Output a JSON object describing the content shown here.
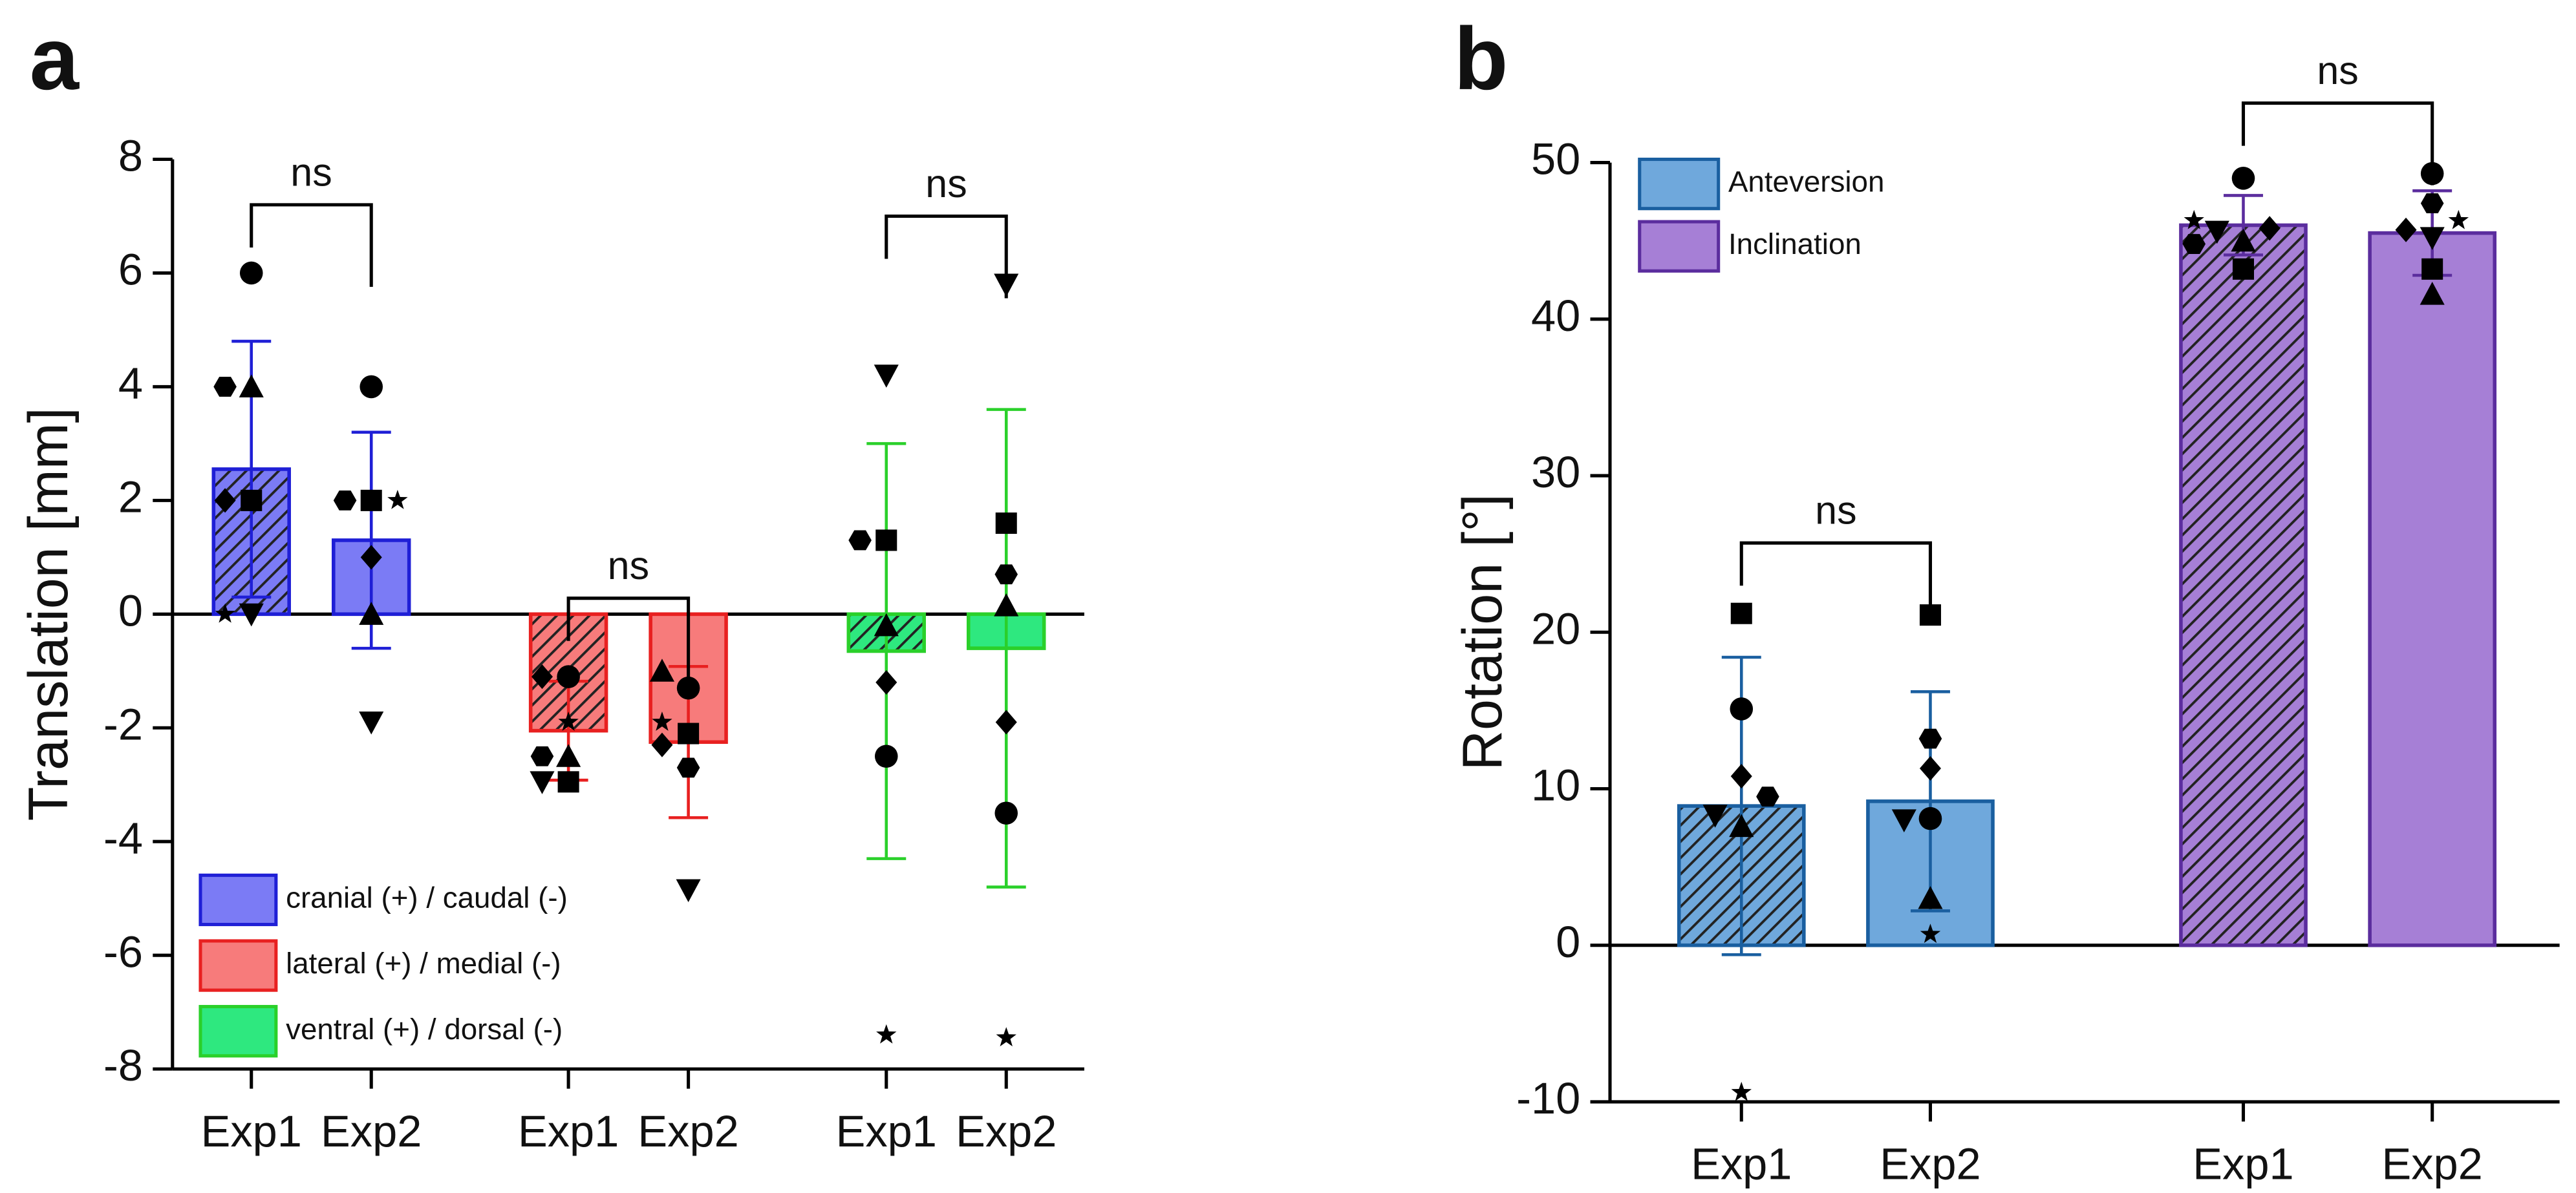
{
  "chart_data": [
    {
      "type": "bar",
      "panel_label": "a",
      "ylabel": "Translation [mm]",
      "ylim": [
        -8,
        8
      ],
      "yticks": [
        -8,
        -6,
        -4,
        -2,
        0,
        2,
        4,
        6,
        8
      ],
      "markers": [
        "circle",
        "square",
        "triangle",
        "down-triangle",
        "diamond",
        "hexagon",
        "star"
      ],
      "hatched": [
        true,
        false
      ],
      "legend": "lower left",
      "groups": [
        {
          "name": "cranial (+) / caudal (-)",
          "color": "#7b7bf5",
          "edge": "#1f1fd6",
          "categories": [
            "Exp1",
            "Exp2"
          ],
          "annotation": "ns",
          "values": [
            2.55,
            1.3
          ],
          "errors": [
            2.25,
            1.9
          ],
          "points": [
            [
              6,
              2,
              4,
              0,
              2,
              4,
              0
            ],
            [
              4,
              2,
              0,
              -1.9,
              1,
              2,
              2
            ]
          ]
        },
        {
          "name": "lateral (+) / medial (-)",
          "color": "#f77b7b",
          "edge": "#e82020",
          "categories": [
            "Exp1",
            "Exp2"
          ],
          "annotation": "ns",
          "values": [
            -2.05,
            -2.25
          ],
          "errors": [
            0.87,
            1.33
          ],
          "points": [
            [
              -1.1,
              -2.95,
              -2.5,
              -2.95,
              -1.1,
              -2.5,
              -1.9
            ],
            [
              -1.3,
              -2.1,
              -1.0,
              -4.85,
              -2.3,
              -2.7,
              -1.9
            ]
          ]
        },
        {
          "name": "ventral (+) / dorsal (-)",
          "color": "#2ee87f",
          "edge": "#2ad02a",
          "categories": [
            "Exp1",
            "Exp2"
          ],
          "annotation": "ns",
          "values": [
            -0.65,
            -0.6
          ],
          "errors": [
            3.65,
            4.2
          ],
          "points": [
            [
              -2.5,
              1.3,
              -0.2,
              4.2,
              -1.2,
              1.3,
              -7.4
            ],
            [
              -3.5,
              1.6,
              0.15,
              5.8,
              -1.9,
              0.7,
              -7.45
            ]
          ]
        }
      ]
    },
    {
      "type": "bar",
      "panel_label": "b",
      "ylabel": "Rotation [°]",
      "ylim": [
        -10,
        50
      ],
      "yticks": [
        -10,
        0,
        10,
        20,
        30,
        40,
        50
      ],
      "markers": [
        "circle",
        "square",
        "triangle",
        "down-triangle",
        "diamond",
        "hexagon",
        "star"
      ],
      "hatched": [
        true,
        false
      ],
      "legend": "upper left",
      "groups": [
        {
          "name": "Anteversion",
          "color": "#6fa8dc",
          "edge": "#1a5fa0",
          "categories": [
            "Exp1",
            "Exp2"
          ],
          "annotation": "ns",
          "values": [
            8.9,
            9.2
          ],
          "errors": [
            9.5,
            7.0
          ],
          "points": [
            [
              15.1,
              21.2,
              7.6,
              8.3,
              10.8,
              9.5,
              -9.4
            ],
            [
              8.1,
              21.1,
              3.0,
              8.0,
              11.3,
              13.2,
              0.7
            ]
          ]
        },
        {
          "name": "Inclination",
          "color": "#a67fd6",
          "edge": "#5b2d9e",
          "categories": [
            "Exp1",
            "Exp2"
          ],
          "annotation": "ns",
          "values": [
            46.0,
            45.5
          ],
          "errors": [
            1.9,
            2.7
          ],
          "points": [
            [
              49,
              43.2,
              45.0,
              45.6,
              45.8,
              44.8,
              46.3
            ],
            [
              49.3,
              43.2,
              41.6,
              45.2,
              45.7,
              47.4,
              46.3
            ]
          ]
        }
      ]
    }
  ]
}
